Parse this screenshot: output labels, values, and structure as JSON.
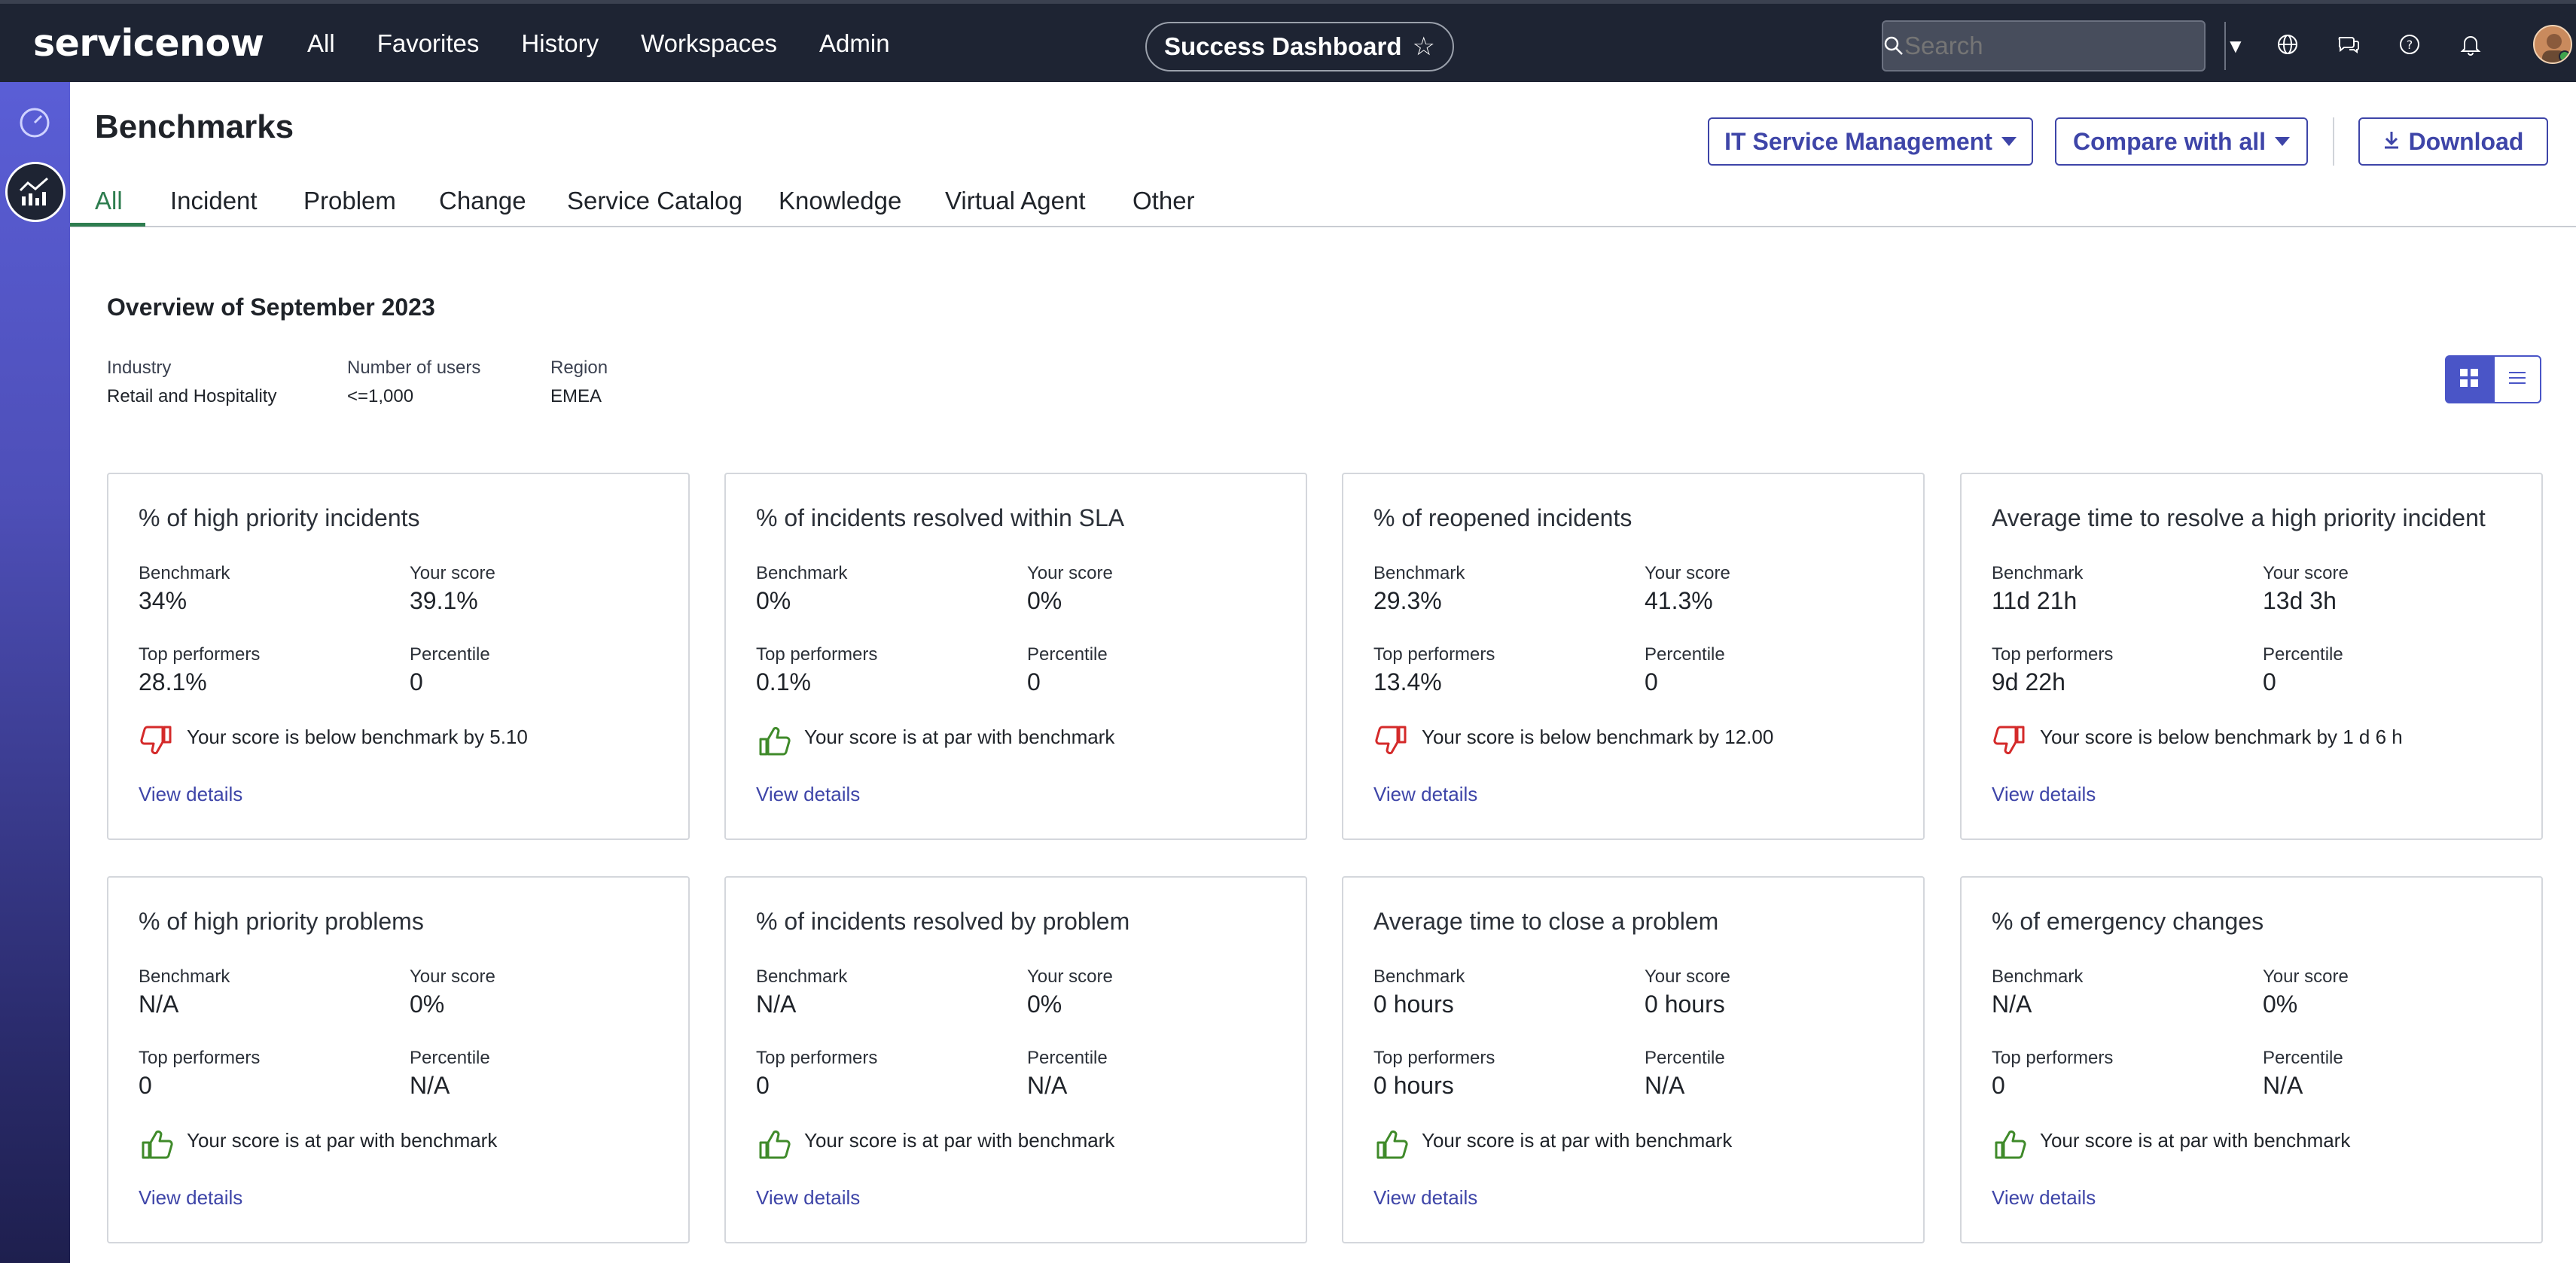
{
  "app": {
    "logo": "servicenow",
    "nav": [
      "All",
      "Favorites",
      "History",
      "Workspaces",
      "Admin"
    ],
    "workspace_pill": "Success Dashboard",
    "search_placeholder": "Search"
  },
  "header": {
    "title": "Benchmarks",
    "product_button": "IT Service Management",
    "compare_button": "Compare with all",
    "download_button": "Download"
  },
  "tabs": [
    "All",
    "Incident",
    "Problem",
    "Change",
    "Service Catalog",
    "Knowledge",
    "Virtual Agent",
    "Other"
  ],
  "active_tab": "All",
  "overview": {
    "title": "Overview of September 2023",
    "filters": [
      {
        "label": "Industry",
        "value": "Retail and Hospitality"
      },
      {
        "label": "Number of users",
        "value": "<=1,000"
      },
      {
        "label": "Region",
        "value": "EMEA"
      }
    ]
  },
  "labels": {
    "benchmark": "Benchmark",
    "your_score": "Your score",
    "top_performers": "Top performers",
    "percentile": "Percentile",
    "view_details": "View details"
  },
  "cards": [
    {
      "title": "% of high priority incidents",
      "benchmark": "34%",
      "your_score": "39.1%",
      "top_performers": "28.1%",
      "percentile": "0",
      "status": "down",
      "message": "Your score is below benchmark by 5.10"
    },
    {
      "title": "% of incidents resolved within SLA",
      "benchmark": "0%",
      "your_score": "0%",
      "top_performers": "0.1%",
      "percentile": "0",
      "status": "up",
      "message": "Your score is at par with benchmark"
    },
    {
      "title": "% of reopened incidents",
      "benchmark": "29.3%",
      "your_score": "41.3%",
      "top_performers": "13.4%",
      "percentile": "0",
      "status": "down",
      "message": "Your score is below benchmark by 12.00"
    },
    {
      "title": "Average time to resolve a high priority incident",
      "benchmark": "11d 21h",
      "your_score": "13d 3h",
      "top_performers": "9d 22h",
      "percentile": "0",
      "status": "down",
      "message": "Your score is below benchmark by 1 d 6 h"
    },
    {
      "title": "% of high priority problems",
      "benchmark": "N/A",
      "your_score": "0%",
      "top_performers": "0",
      "percentile": "N/A",
      "status": "up",
      "message": "Your score is at par with benchmark"
    },
    {
      "title": "% of incidents resolved by problem",
      "benchmark": "N/A",
      "your_score": "0%",
      "top_performers": "0",
      "percentile": "N/A",
      "status": "up",
      "message": "Your score is at par with benchmark"
    },
    {
      "title": "Average time to close a problem",
      "benchmark": "0 hours",
      "your_score": "0 hours",
      "top_performers": "0 hours",
      "percentile": "N/A",
      "status": "up",
      "message": "Your score is at par with benchmark"
    },
    {
      "title": "% of emergency changes",
      "benchmark": "N/A",
      "your_score": "0%",
      "top_performers": "0",
      "percentile": "N/A",
      "status": "up",
      "message": "Your score is at par with benchmark"
    }
  ],
  "colors": {
    "nav_bg": "#1e2433",
    "accent": "#3e45a8",
    "tab_active": "#2e7d4f",
    "thumbs_up": "#3f8a2a",
    "thumbs_down": "#d42a2a"
  }
}
